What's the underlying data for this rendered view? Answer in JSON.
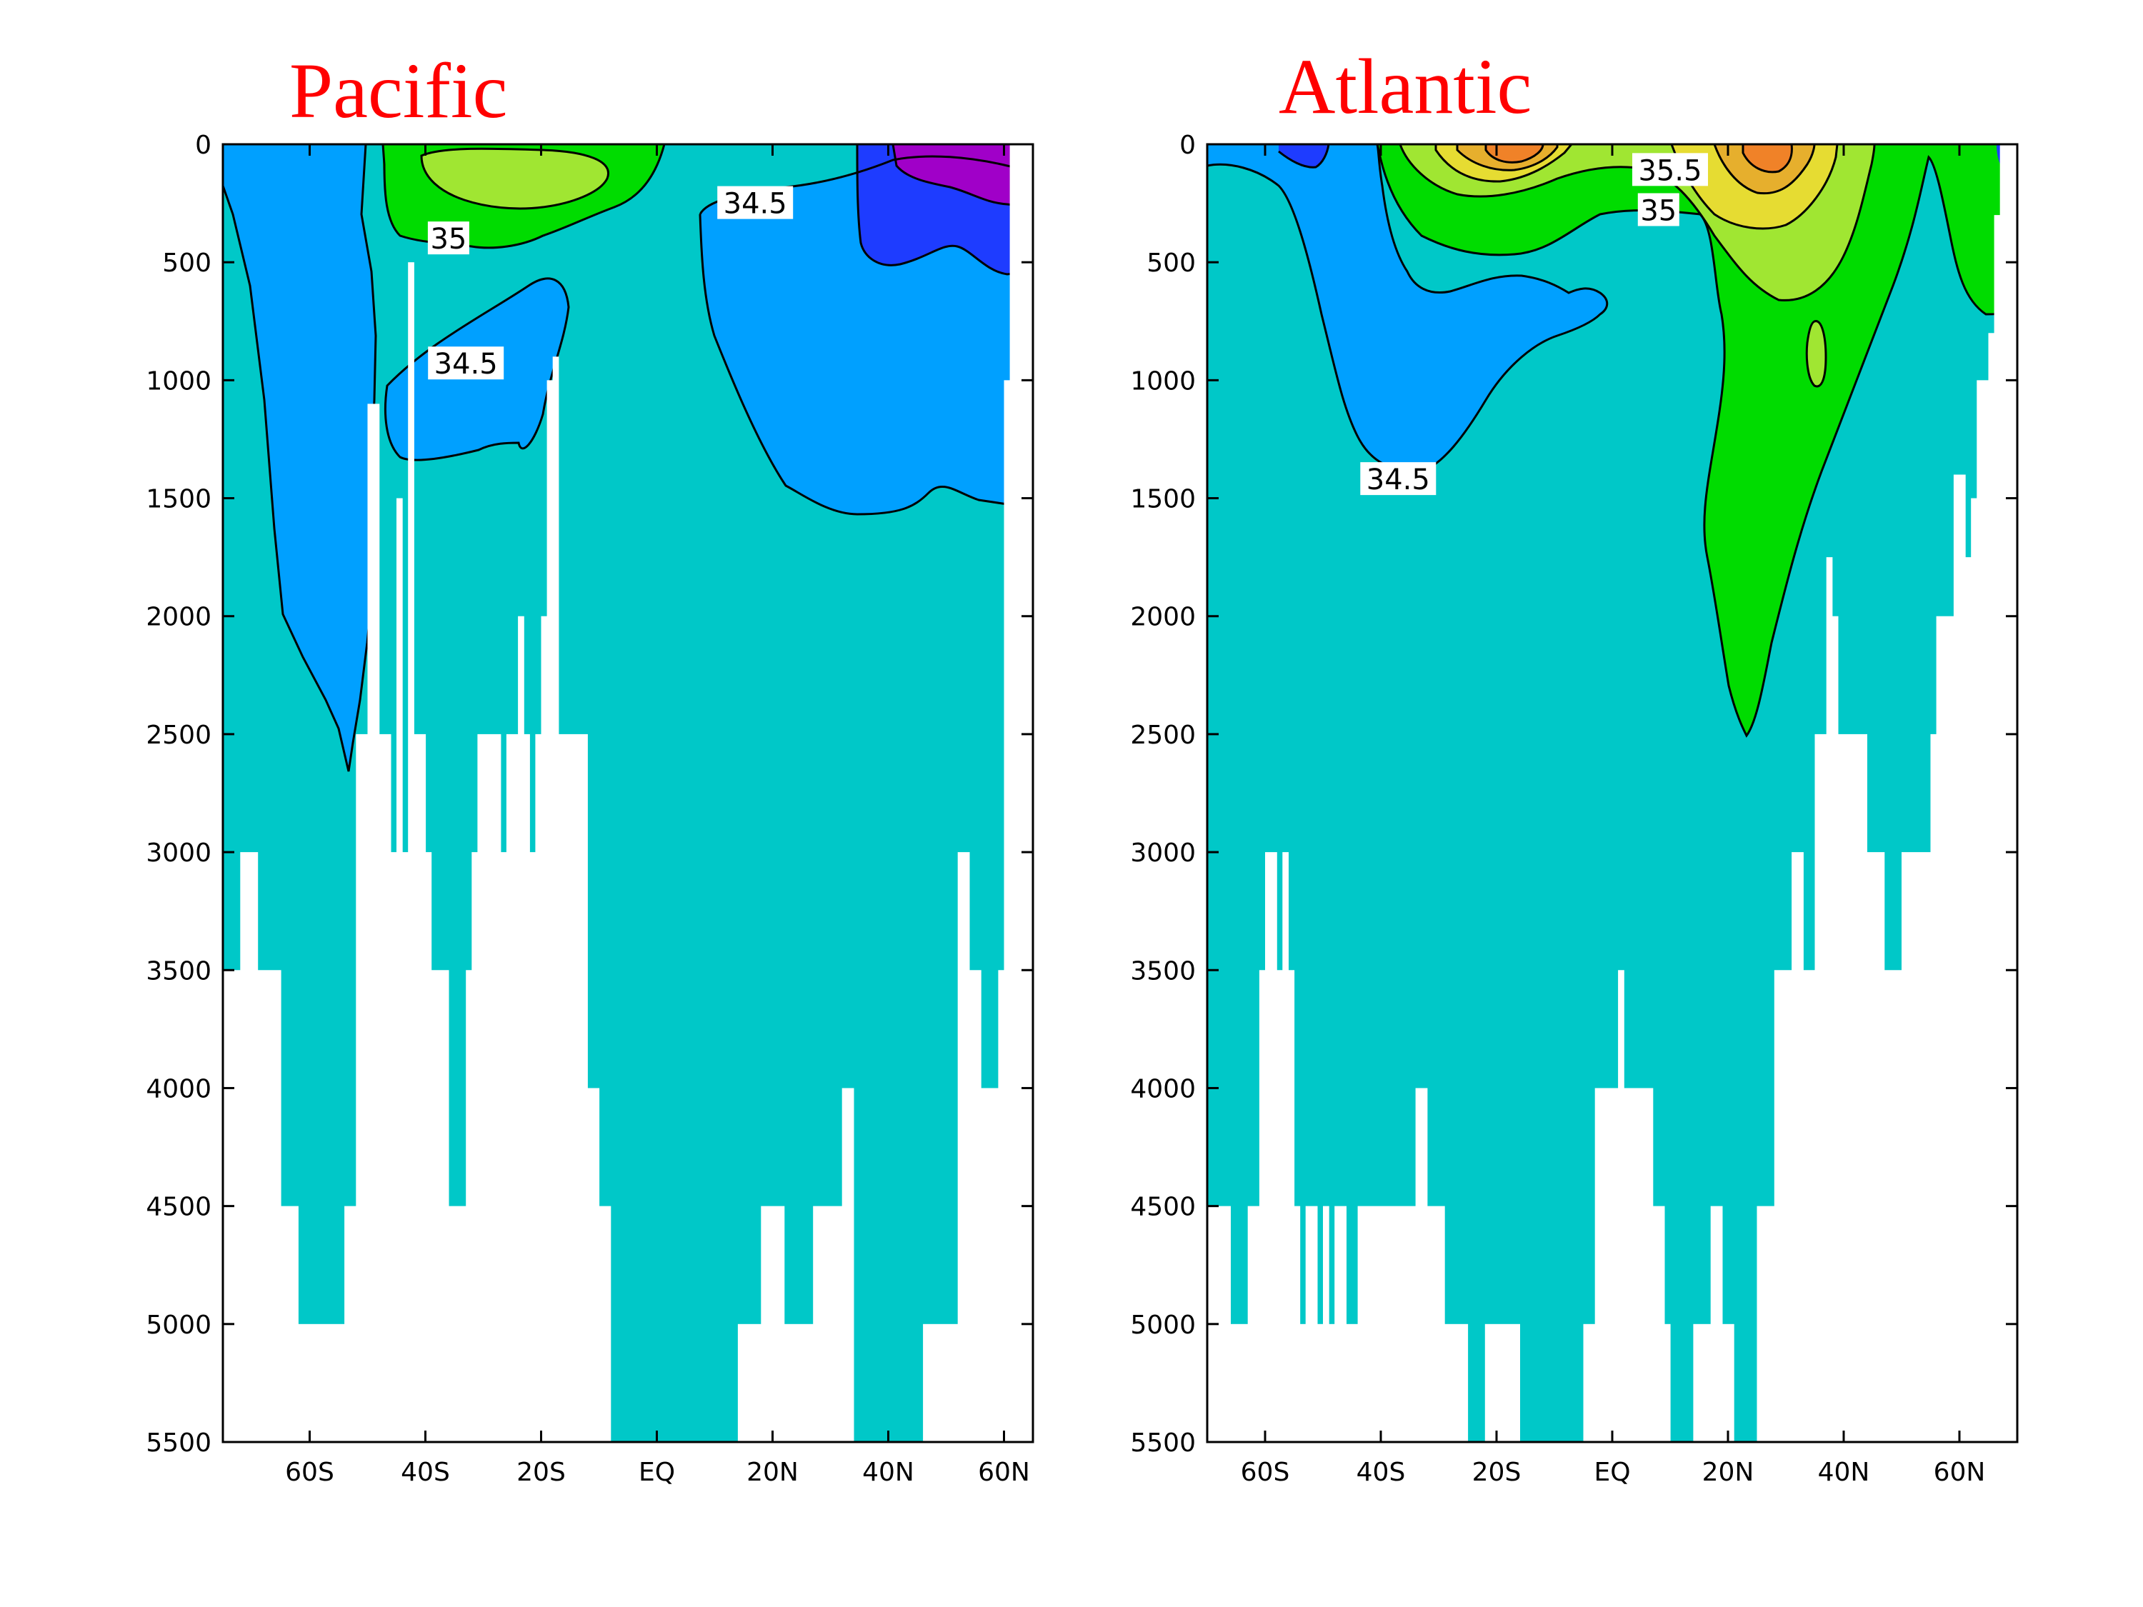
{
  "chart_data": [
    {
      "type": "heatmap",
      "title": "Pacific",
      "xlabel": "",
      "ylabel": "",
      "xlim": [
        -75,
        65
      ],
      "ylim": [
        5500,
        0
      ],
      "x_ticks": [
        -60,
        -40,
        -20,
        0,
        20,
        40,
        60
      ],
      "x_tick_labels": [
        "60S",
        "40S",
        "20S",
        "EQ",
        "20N",
        "40N",
        "60N"
      ],
      "y_ticks": [
        0,
        500,
        1000,
        1500,
        2000,
        2500,
        3000,
        3500,
        4000,
        4500,
        5000,
        5500
      ],
      "y_tick_labels": [
        "0",
        "500",
        "1000",
        "1500",
        "2000",
        "2500",
        "3000",
        "3500",
        "4000",
        "4500",
        "5000",
        "5500"
      ],
      "contour_labels": [
        {
          "text": "35",
          "lat": -36,
          "depth": 400
        },
        {
          "text": "34.5",
          "lat": -33,
          "depth": 930
        },
        {
          "text": "34.5",
          "lat": 17,
          "depth": 250
        }
      ],
      "bottom_depth": [
        {
          "x0": -75,
          "x1": -72,
          "depth": 3500
        },
        {
          "x0": -72,
          "x1": -69,
          "depth": 3000
        },
        {
          "x0": -69,
          "x1": -65,
          "depth": 3500
        },
        {
          "x0": -65,
          "x1": -62,
          "depth": 4500
        },
        {
          "x0": -62,
          "x1": -54,
          "depth": 5000
        },
        {
          "x0": -54,
          "x1": -52,
          "depth": 4500
        },
        {
          "x0": -52,
          "x1": -50,
          "depth": 2500
        },
        {
          "x0": -50,
          "x1": -48,
          "depth": 1100
        },
        {
          "x0": -48,
          "x1": -46,
          "depth": 2500
        },
        {
          "x0": -46,
          "x1": -45,
          "depth": 3000
        },
        {
          "x0": -45,
          "x1": -44,
          "depth": 1500
        },
        {
          "x0": -44,
          "x1": -43,
          "depth": 3000
        },
        {
          "x0": -43,
          "x1": -42,
          "depth": 500
        },
        {
          "x0": -42,
          "x1": -40,
          "depth": 2500
        },
        {
          "x0": -40,
          "x1": -39,
          "depth": 3000
        },
        {
          "x0": -39,
          "x1": -36,
          "depth": 3500
        },
        {
          "x0": -36,
          "x1": -33,
          "depth": 4500
        },
        {
          "x0": -33,
          "x1": -32,
          "depth": 3500
        },
        {
          "x0": -32,
          "x1": -31,
          "depth": 3000
        },
        {
          "x0": -31,
          "x1": -27,
          "depth": 2500
        },
        {
          "x0": -27,
          "x1": -26,
          "depth": 3000
        },
        {
          "x0": -26,
          "x1": -24,
          "depth": 2500
        },
        {
          "x0": -24,
          "x1": -23,
          "depth": 2000
        },
        {
          "x0": -23,
          "x1": -22,
          "depth": 2500
        },
        {
          "x0": -22,
          "x1": -21,
          "depth": 3000
        },
        {
          "x0": -21,
          "x1": -20,
          "depth": 2500
        },
        {
          "x0": -20,
          "x1": -19,
          "depth": 2000
        },
        {
          "x0": -19,
          "x1": -18,
          "depth": 1000
        },
        {
          "x0": -18,
          "x1": -17,
          "depth": 900
        },
        {
          "x0": -17,
          "x1": -12,
          "depth": 2500
        },
        {
          "x0": -12,
          "x1": -10,
          "depth": 4000
        },
        {
          "x0": -10,
          "x1": -8,
          "depth": 4500
        },
        {
          "x0": -8,
          "x1": 14,
          "depth": 5500
        },
        {
          "x0": 14,
          "x1": 18,
          "depth": 5000
        },
        {
          "x0": 18,
          "x1": 22,
          "depth": 4500
        },
        {
          "x0": 22,
          "x1": 27,
          "depth": 5000
        },
        {
          "x0": 27,
          "x1": 32,
          "depth": 4500
        },
        {
          "x0": 32,
          "x1": 34,
          "depth": 4000
        },
        {
          "x0": 34,
          "x1": 46,
          "depth": 5500
        },
        {
          "x0": 46,
          "x1": 52,
          "depth": 5000
        },
        {
          "x0": 52,
          "x1": 54,
          "depth": 3000
        },
        {
          "x0": 54,
          "x1": 56,
          "depth": 3500
        },
        {
          "x0": 56,
          "x1": 59,
          "depth": 4000
        },
        {
          "x0": 59,
          "x1": 60,
          "depth": 3500
        },
        {
          "x0": 60,
          "x1": 61,
          "depth": 1000
        },
        {
          "x0": 61,
          "x1": 65,
          "depth": 0
        }
      ]
    },
    {
      "type": "heatmap",
      "title": "Atlantic",
      "xlabel": "",
      "ylabel": "",
      "xlim": [
        -70,
        70
      ],
      "ylim": [
        5500,
        0
      ],
      "x_ticks": [
        -60,
        -40,
        -20,
        0,
        20,
        40,
        60
      ],
      "x_tick_labels": [
        "60S",
        "40S",
        "20S",
        "EQ",
        "20N",
        "40N",
        "60N"
      ],
      "y_ticks": [
        0,
        500,
        1000,
        1500,
        2000,
        2500,
        3000,
        3500,
        4000,
        4500,
        5000,
        5500
      ],
      "y_tick_labels": [
        "0",
        "500",
        "1000",
        "1500",
        "2000",
        "2500",
        "3000",
        "3500",
        "4000",
        "4500",
        "5000",
        "5500"
      ],
      "contour_labels": [
        {
          "text": "35.5",
          "lat": 10,
          "depth": 110
        },
        {
          "text": "35",
          "lat": 8,
          "depth": 280
        },
        {
          "text": "34.5",
          "lat": -37,
          "depth": 1420
        }
      ],
      "bottom_depth": [
        {
          "x0": -70,
          "x1": -66,
          "depth": 4500
        },
        {
          "x0": -66,
          "x1": -63,
          "depth": 5000
        },
        {
          "x0": -63,
          "x1": -61,
          "depth": 4500
        },
        {
          "x0": -61,
          "x1": -60,
          "depth": 3500
        },
        {
          "x0": -60,
          "x1": -58,
          "depth": 3000
        },
        {
          "x0": -58,
          "x1": -57,
          "depth": 3500
        },
        {
          "x0": -57,
          "x1": -56,
          "depth": 3000
        },
        {
          "x0": -56,
          "x1": -55,
          "depth": 3500
        },
        {
          "x0": -55,
          "x1": -54,
          "depth": 4500
        },
        {
          "x0": -54,
          "x1": -53,
          "depth": 5000
        },
        {
          "x0": -53,
          "x1": -51,
          "depth": 4500
        },
        {
          "x0": -51,
          "x1": -50,
          "depth": 5000
        },
        {
          "x0": -50,
          "x1": -49,
          "depth": 4500
        },
        {
          "x0": -49,
          "x1": -48,
          "depth": 5000
        },
        {
          "x0": -48,
          "x1": -46,
          "depth": 4500
        },
        {
          "x0": -46,
          "x1": -44,
          "depth": 5000
        },
        {
          "x0": -44,
          "x1": -34,
          "depth": 4500
        },
        {
          "x0": -34,
          "x1": -32,
          "depth": 4000
        },
        {
          "x0": -32,
          "x1": -29,
          "depth": 4500
        },
        {
          "x0": -29,
          "x1": -25,
          "depth": 5000
        },
        {
          "x0": -25,
          "x1": -22,
          "depth": 5500
        },
        {
          "x0": -22,
          "x1": -16,
          "depth": 5000
        },
        {
          "x0": -16,
          "x1": -5,
          "depth": 5500
        },
        {
          "x0": -5,
          "x1": -3,
          "depth": 5000
        },
        {
          "x0": -3,
          "x1": 1,
          "depth": 4000
        },
        {
          "x0": 1,
          "x1": 2,
          "depth": 3500
        },
        {
          "x0": 2,
          "x1": 7,
          "depth": 4000
        },
        {
          "x0": 7,
          "x1": 9,
          "depth": 4500
        },
        {
          "x0": 9,
          "x1": 10,
          "depth": 5000
        },
        {
          "x0": 10,
          "x1": 14,
          "depth": 5500
        },
        {
          "x0": 14,
          "x1": 17,
          "depth": 5000
        },
        {
          "x0": 17,
          "x1": 19,
          "depth": 4500
        },
        {
          "x0": 19,
          "x1": 21,
          "depth": 5000
        },
        {
          "x0": 21,
          "x1": 25,
          "depth": 5500
        },
        {
          "x0": 25,
          "x1": 28,
          "depth": 4500
        },
        {
          "x0": 28,
          "x1": 31,
          "depth": 3500
        },
        {
          "x0": 31,
          "x1": 33,
          "depth": 3000
        },
        {
          "x0": 33,
          "x1": 35,
          "depth": 3500
        },
        {
          "x0": 35,
          "x1": 37,
          "depth": 2500
        },
        {
          "x0": 37,
          "x1": 38,
          "depth": 1750
        },
        {
          "x0": 38,
          "x1": 39,
          "depth": 2000
        },
        {
          "x0": 39,
          "x1": 44,
          "depth": 2500
        },
        {
          "x0": 44,
          "x1": 47,
          "depth": 3000
        },
        {
          "x0": 47,
          "x1": 50,
          "depth": 3500
        },
        {
          "x0": 50,
          "x1": 55,
          "depth": 3000
        },
        {
          "x0": 55,
          "x1": 56,
          "depth": 2500
        },
        {
          "x0": 56,
          "x1": 59,
          "depth": 2000
        },
        {
          "x0": 59,
          "x1": 61,
          "depth": 1400
        },
        {
          "x0": 61,
          "x1": 62,
          "depth": 1750
        },
        {
          "x0": 62,
          "x1": 63,
          "depth": 1500
        },
        {
          "x0": 63,
          "x1": 65,
          "depth": 1000
        },
        {
          "x0": 65,
          "x1": 66,
          "depth": 800
        },
        {
          "x0": 66,
          "x1": 67,
          "depth": 300
        },
        {
          "x0": 67,
          "x1": 70,
          "depth": 0
        }
      ]
    }
  ],
  "colors": {
    "deep_water": "#00c8c8",
    "below_34_5": "#00a0ff",
    "range_35_35_5": "#00dc00",
    "range_35_5_36": "#a0e632",
    "range_36_36_5": "#e6dc32",
    "range_36_5_37": "#e6af2d",
    "range_above_37": "#f08228",
    "fresh_33_5_34": "#1e3cff",
    "fresh_below_33_5": "#a000c8",
    "contour_line": "#000000",
    "title": "#ff0000"
  }
}
